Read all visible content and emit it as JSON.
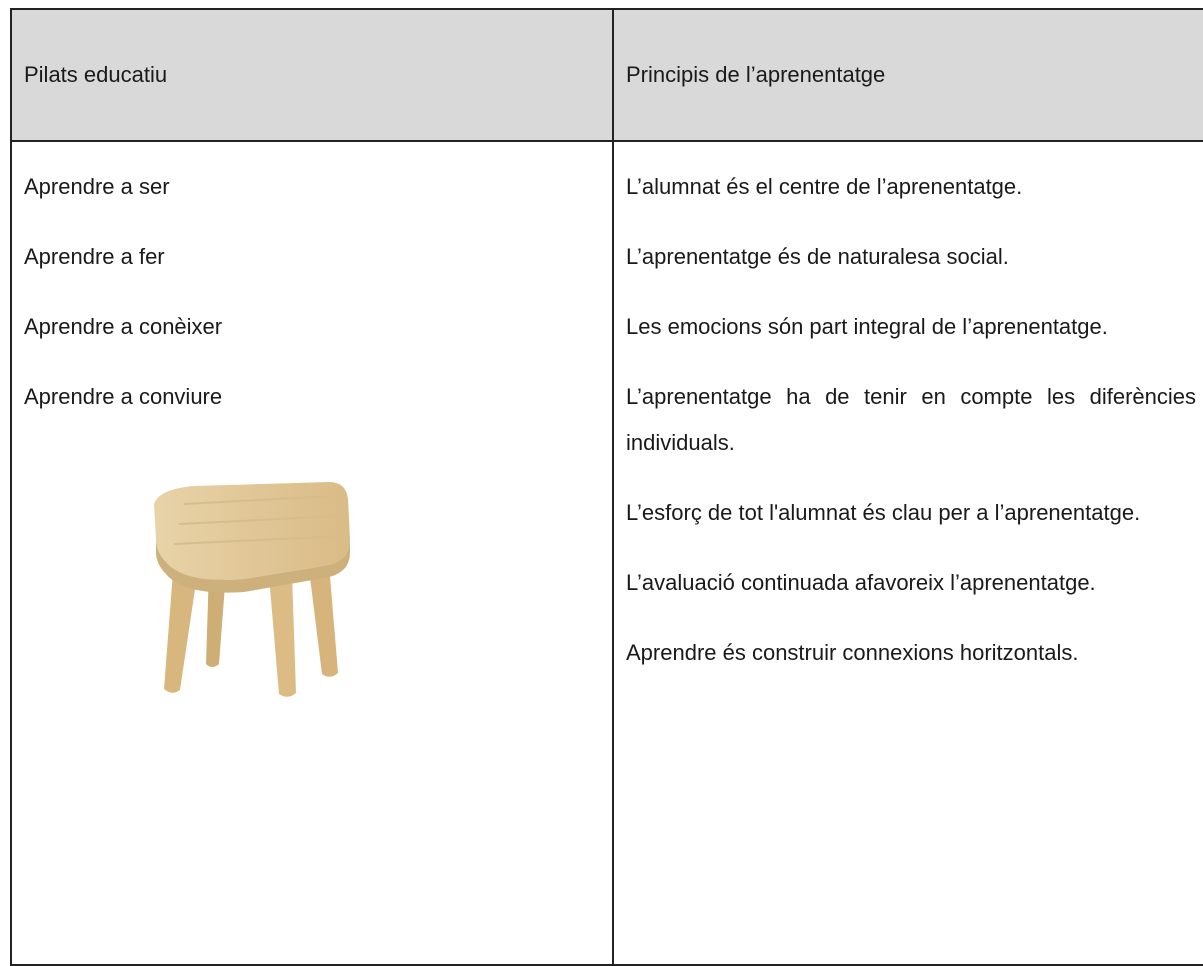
{
  "table": {
    "headers": [
      "Pilats educatiu",
      "Principis de l’aprenentatge"
    ],
    "left": [
      "Aprendre a ser",
      "Aprendre a fer",
      "Aprendre a conèixer",
      "Aprendre a conviure"
    ],
    "right": [
      "L’alumnat és el centre de l’aprenentatge.",
      "L’aprenentatge és de naturalesa social.",
      "Les emocions són part integral de l’aprenentatge.",
      "L’aprenentatge ha de tenir en compte les diferències individuals.",
      "L’esforç de tot l'alumnat és clau per a l’aprenentatge.",
      "L’avaluació continuada afavoreix l’aprenentatge.",
      "Aprendre és construir connexions horitzontals."
    ]
  }
}
